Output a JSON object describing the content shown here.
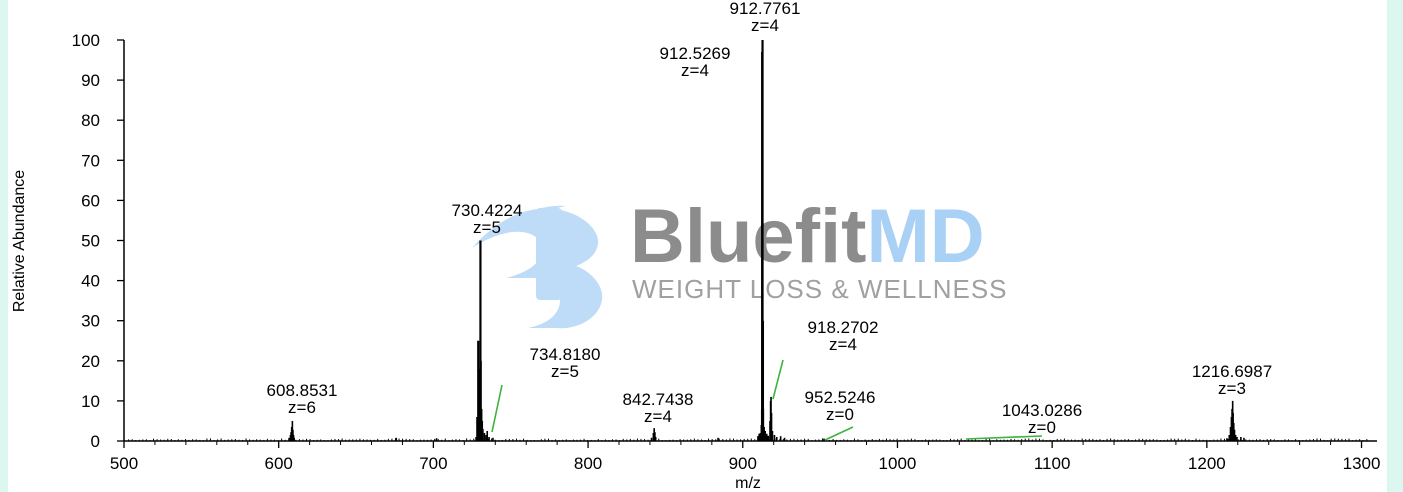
{
  "chart_data": {
    "type": "line",
    "title": "",
    "xlabel": "m/z",
    "ylabel": "Relative Abundance",
    "xlim": [
      500,
      1310
    ],
    "ylim": [
      0,
      100
    ],
    "xticks": [
      500,
      600,
      700,
      800,
      900,
      1000,
      1100,
      1200,
      1300
    ],
    "yticks": [
      0,
      10,
      20,
      30,
      40,
      50,
      60,
      70,
      80,
      90,
      100
    ],
    "grid": false,
    "peak_labels": [
      {
        "mz": 608.8531,
        "charge": 6,
        "value": 5,
        "label": "608.8531",
        "charge_label": "z=6"
      },
      {
        "mz": 730.4224,
        "charge": 5,
        "value": 50,
        "label": "730.4224",
        "charge_label": "z=5"
      },
      {
        "mz": 734.818,
        "charge": 5,
        "value": 14,
        "label": "734.8180",
        "charge_label": "z=5"
      },
      {
        "mz": 842.7438,
        "charge": 4,
        "value": 3,
        "label": "842.7438",
        "charge_label": "z=4"
      },
      {
        "mz": 912.5269,
        "charge": 4,
        "value": 97,
        "label": "912.5269",
        "charge_label": "z=4"
      },
      {
        "mz": 912.7761,
        "charge": 4,
        "value": 100,
        "label": "912.7761",
        "charge_label": "z=4"
      },
      {
        "mz": 918.2702,
        "charge": 4,
        "value": 20,
        "label": "918.2702",
        "charge_label": "z=4"
      },
      {
        "mz": 952.5246,
        "charge": 0,
        "value": 1,
        "label": "952.5246",
        "charge_label": "z=0"
      },
      {
        "mz": 1043.0286,
        "charge": 0,
        "value": 0.5,
        "label": "1043.0286",
        "charge_label": "z=0"
      },
      {
        "mz": 1216.6987,
        "charge": 3,
        "value": 10,
        "label": "1216.6987",
        "charge_label": "z=3"
      }
    ],
    "series": [
      {
        "points": [
          [
            606.8,
            0.8
          ],
          [
            607.6,
            1.5
          ],
          [
            608.0,
            2.2
          ],
          [
            608.4,
            3.5
          ],
          [
            608.85,
            5.0
          ],
          [
            609.2,
            2.8
          ],
          [
            609.6,
            1.5
          ],
          [
            610.0,
            0.8
          ],
          [
            676.0,
            0.8
          ],
          [
            702.0,
            0.7
          ],
          [
            727.6,
            1.0
          ],
          [
            728.2,
            6.0
          ],
          [
            729.0,
            25.0
          ],
          [
            729.4,
            12.0
          ],
          [
            730.0,
            18.0
          ],
          [
            730.42,
            50.0
          ],
          [
            730.8,
            20.0
          ],
          [
            731.2,
            8.0
          ],
          [
            731.6,
            5.0
          ],
          [
            732.0,
            3.0
          ],
          [
            733.0,
            2.0
          ],
          [
            734.0,
            1.5
          ],
          [
            734.82,
            2.5
          ],
          [
            736.0,
            1.0
          ],
          [
            738.5,
            0.8
          ],
          [
            841.0,
            0.8
          ],
          [
            842.2,
            2.0
          ],
          [
            842.74,
            3.2
          ],
          [
            843.2,
            2.2
          ],
          [
            843.7,
            1.0
          ],
          [
            884.0,
            0.8
          ],
          [
            909.8,
            1.2
          ],
          [
            910.6,
            1.8
          ],
          [
            911.4,
            2.0
          ],
          [
            912.0,
            4.0
          ],
          [
            912.27,
            8.0
          ],
          [
            912.53,
            97.0
          ],
          [
            912.78,
            100.0
          ],
          [
            913.03,
            30.0
          ],
          [
            913.3,
            8.0
          ],
          [
            913.8,
            3.5
          ],
          [
            914.5,
            2.5
          ],
          [
            915.5,
            1.8
          ],
          [
            916.5,
            1.3
          ],
          [
            917.6,
            5.0
          ],
          [
            918.0,
            10.0
          ],
          [
            918.27,
            11.0
          ],
          [
            918.6,
            7.0
          ],
          [
            919.2,
            2.5
          ],
          [
            920.5,
            1.5
          ],
          [
            922.0,
            1.0
          ],
          [
            924.5,
            1.2
          ],
          [
            927.0,
            0.8
          ],
          [
            952.5,
            0.6
          ],
          [
            1213.0,
            0.7
          ],
          [
            1214.5,
            1.5
          ],
          [
            1215.3,
            3.5
          ],
          [
            1215.9,
            6.0
          ],
          [
            1216.3,
            8.0
          ],
          [
            1216.7,
            10.0
          ],
          [
            1217.0,
            7.0
          ],
          [
            1217.4,
            4.5
          ],
          [
            1217.9,
            2.8
          ],
          [
            1218.6,
            1.5
          ],
          [
            1219.5,
            1.0
          ],
          [
            1222.0,
            1.0
          ],
          [
            1224.0,
            0.8
          ]
        ]
      }
    ]
  },
  "watermark": {
    "name_part1": "Bluefit",
    "name_part2": "MD",
    "tagline": "WEIGHT LOSS & WELLNESS",
    "colors": {
      "blue": "#8fc3f2",
      "gray": "#8a8a8a",
      "tag": "#9a9a9a"
    }
  },
  "colors": {
    "axis": "#000000",
    "trace": "#000000",
    "label_line": "#3db33d",
    "frame": "#dcf7ef"
  }
}
